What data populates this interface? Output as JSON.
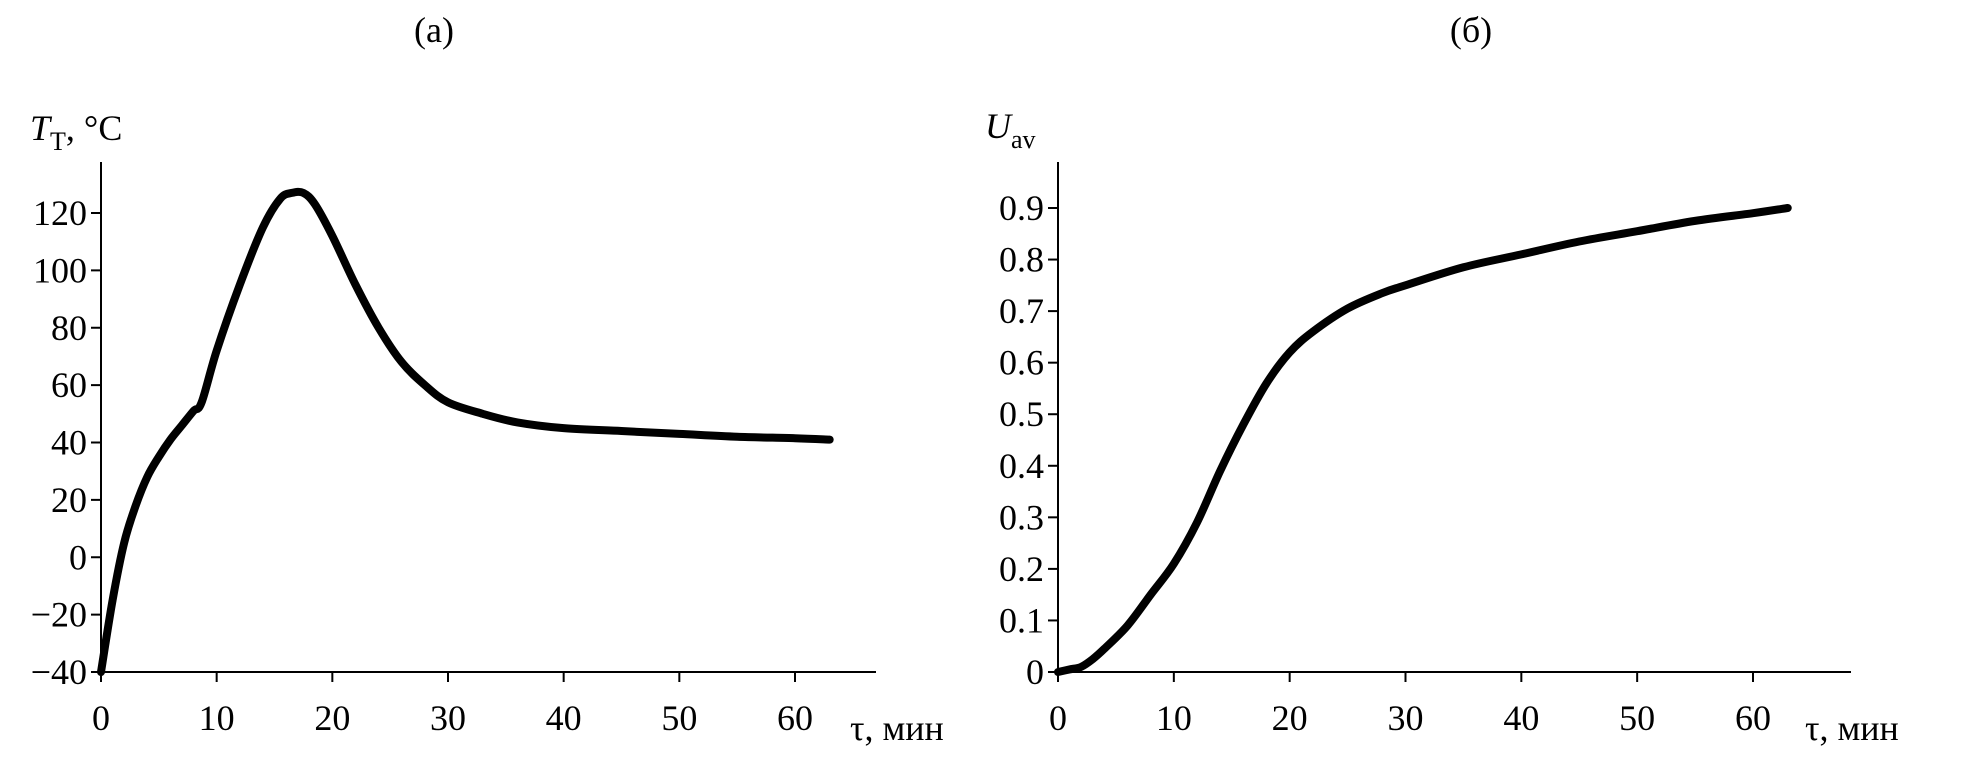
{
  "chart_data": [
    {
      "type": "line",
      "title": "(a)",
      "ylabel_main": "T",
      "ylabel_sub": "Т",
      "ylabel_unit": ", °C",
      "xlabel": "τ, мин",
      "xlim": [
        0,
        70
      ],
      "ylim": [
        -40,
        140
      ],
      "xticks": [
        0,
        10,
        20,
        30,
        40,
        50,
        60
      ],
      "yticks": [
        -40,
        -20,
        0,
        20,
        40,
        60,
        80,
        100,
        120
      ],
      "ytick_labels": [
        "−40",
        "−20",
        "0",
        "20",
        "40",
        "60",
        "80",
        "100",
        "120"
      ],
      "grid": false,
      "series": [
        {
          "x": [
            0,
            1,
            2,
            3,
            4,
            5,
            6,
            7,
            8,
            8.7,
            10,
            12,
            14,
            15.5,
            16.5,
            17.5,
            18.5,
            20,
            22,
            24,
            26,
            28,
            30,
            33,
            36,
            40,
            45,
            50,
            55,
            60,
            63
          ],
          "y": [
            -40,
            -15,
            5,
            18,
            28,
            35,
            41,
            46,
            51,
            54,
            72,
            95,
            115,
            125,
            127,
            127,
            123,
            112,
            95,
            80,
            68,
            60,
            54,
            50,
            47,
            45,
            44,
            43,
            42,
            41.5,
            41
          ]
        }
      ]
    },
    {
      "type": "line",
      "title": "(б)",
      "ylabel_main": "U",
      "ylabel_sub": "av",
      "ylabel_unit": "",
      "xlabel": "τ, мин",
      "xlim": [
        0,
        70
      ],
      "ylim": [
        0,
        1.0
      ],
      "xticks": [
        0,
        10,
        20,
        30,
        40,
        50,
        60
      ],
      "yticks": [
        0,
        0.1,
        0.2,
        0.3,
        0.4,
        0.5,
        0.6,
        0.7,
        0.8,
        0.9
      ],
      "ytick_labels": [
        "0",
        "0.1",
        "0.2",
        "0.3",
        "0.4",
        "0.5",
        "0.6",
        "0.7",
        "0.8",
        "0.9"
      ],
      "grid": false,
      "series": [
        {
          "x": [
            0,
            1,
            2,
            3,
            4,
            6,
            8,
            10,
            12,
            14,
            16,
            18,
            20,
            22,
            25,
            28,
            30,
            35,
            40,
            45,
            50,
            55,
            60,
            63
          ],
          "y": [
            0,
            0.005,
            0.01,
            0.025,
            0.045,
            0.09,
            0.15,
            0.21,
            0.29,
            0.39,
            0.48,
            0.56,
            0.62,
            0.66,
            0.705,
            0.735,
            0.75,
            0.785,
            0.81,
            0.835,
            0.855,
            0.875,
            0.89,
            0.9
          ]
        }
      ]
    }
  ]
}
